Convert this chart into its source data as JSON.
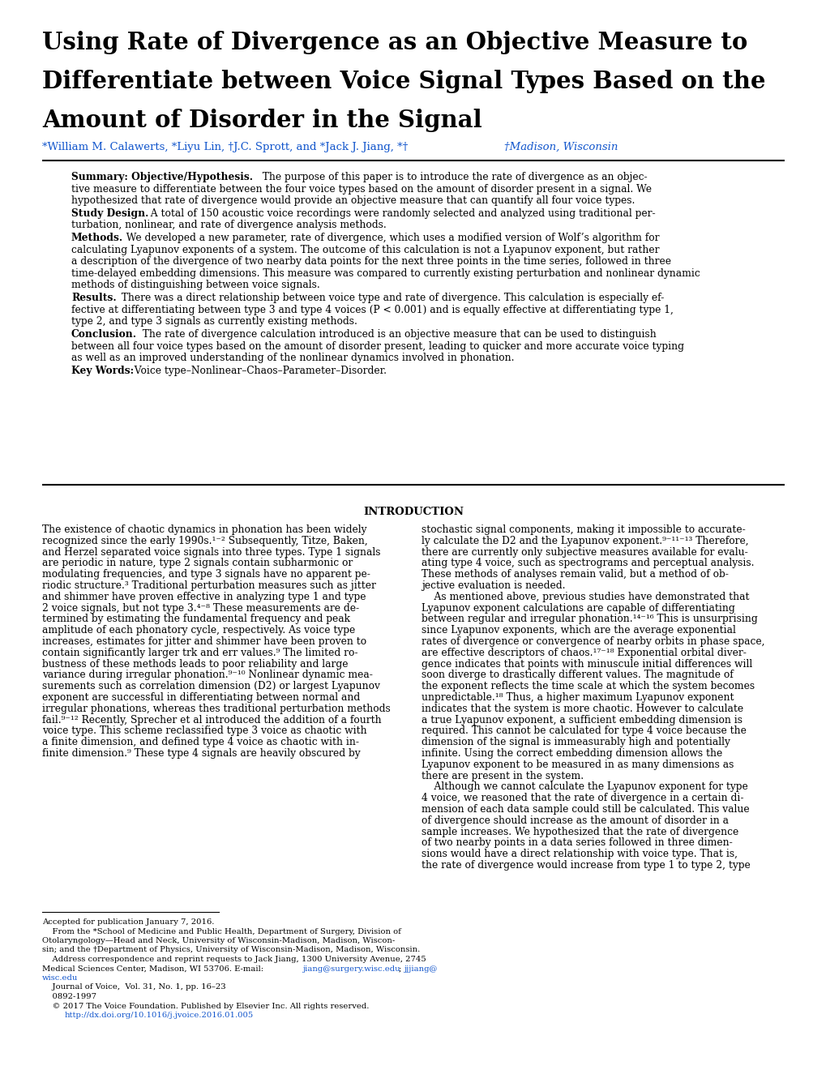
{
  "bg_color": "#ffffff",
  "text_color": "#000000",
  "blue_color": "#1155cc",
  "title_line1": "Using Rate of Divergence as an Objective Measure to",
  "title_line2": "Differentiate between Voice Signal Types Based on the",
  "title_line3": "Amount of Disorder in the Signal",
  "footnote_doi": "http://dx.doi.org/10.1016/j.jvoice.2016.01.005"
}
